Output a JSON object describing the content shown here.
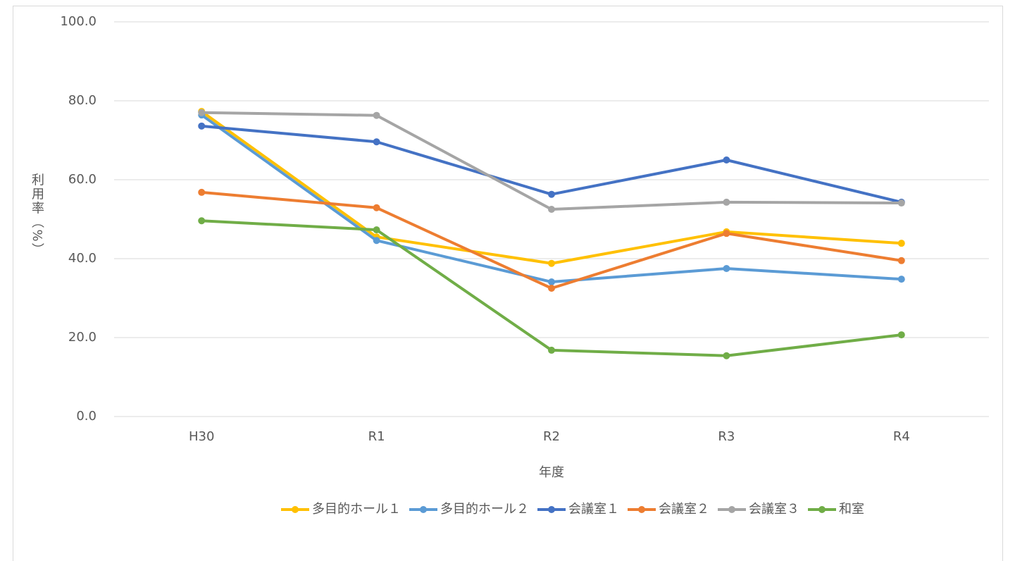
{
  "chart_data": {
    "type": "line",
    "y_label": "利用率（%）",
    "x_label": "年度",
    "categories": [
      "H30",
      "R1",
      "R2",
      "R3",
      "R4"
    ],
    "series": [
      {
        "name": "多目的ホール１",
        "color": "#FFC000",
        "values": [
          77.3,
          45.5,
          38.8,
          46.8,
          43.9
        ]
      },
      {
        "name": "多目的ホール２",
        "color": "#5B9BD5",
        "values": [
          76.4,
          44.6,
          34.1,
          37.5,
          34.8
        ]
      },
      {
        "name": "会議室１",
        "color": "#4472C4",
        "values": [
          73.6,
          69.6,
          56.3,
          65.0,
          54.3
        ]
      },
      {
        "name": "会議室２",
        "color": "#ED7D31",
        "values": [
          56.8,
          52.9,
          32.5,
          46.4,
          39.5
        ]
      },
      {
        "name": "会議室３",
        "color": "#A5A5A5",
        "values": [
          77.0,
          76.3,
          52.5,
          54.3,
          54.1
        ]
      },
      {
        "name": "和室",
        "color": "#70AD47",
        "values": [
          49.6,
          47.3,
          16.8,
          15.4,
          20.7
        ]
      }
    ],
    "ylim": [
      0,
      100
    ],
    "yticks": [
      {
        "value": 0,
        "label": "0.0"
      },
      {
        "value": 20,
        "label": "20.0"
      },
      {
        "value": 40,
        "label": "40.0"
      },
      {
        "value": 60,
        "label": "60.0"
      },
      {
        "value": 80,
        "label": "80.0"
      },
      {
        "value": 100,
        "label": "100.0"
      }
    ],
    "grid": true,
    "legend": "bottom"
  }
}
